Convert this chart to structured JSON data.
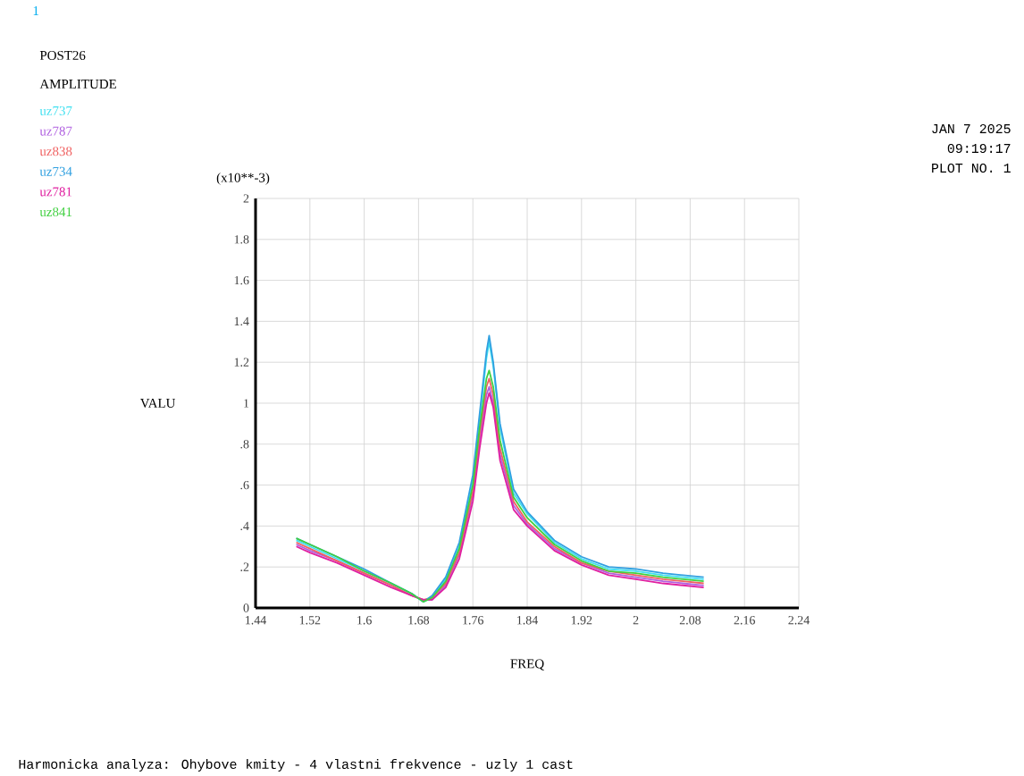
{
  "chart_data": {
    "type": "line",
    "annotations": [
      "1",
      "POST26",
      "AMPLITUDE",
      "(x10**-3)",
      "JAN  7 2025",
      "09:19:17",
      "PLOT NO.    1",
      "Harmonicka analyza: Ohybove kmity - 4 vlastni frekvence - uzly 1 cast"
    ],
    "xlabel": "FREQ",
    "ylabel": "VALU",
    "x": [
      1.5,
      1.52,
      1.56,
      1.6,
      1.64,
      1.67,
      1.687,
      1.7,
      1.72,
      1.74,
      1.76,
      1.77,
      1.78,
      1.784,
      1.79,
      1.8,
      1.82,
      1.84,
      1.88,
      1.92,
      1.96,
      2.0,
      2.04,
      2.1
    ],
    "series": [
      {
        "name": "uz737",
        "color": "#40e0f0",
        "values": [
          0.33,
          0.3,
          0.24,
          0.18,
          0.12,
          0.07,
          0.03,
          0.05,
          0.14,
          0.3,
          0.62,
          0.92,
          1.22,
          1.3,
          1.18,
          0.88,
          0.56,
          0.46,
          0.32,
          0.24,
          0.19,
          0.18,
          0.16,
          0.14
        ]
      },
      {
        "name": "uz787",
        "color": "#b060e0",
        "values": [
          0.31,
          0.28,
          0.23,
          0.17,
          0.11,
          0.06,
          0.04,
          0.04,
          0.11,
          0.26,
          0.55,
          0.82,
          1.04,
          1.08,
          1.0,
          0.75,
          0.5,
          0.41,
          0.29,
          0.22,
          0.17,
          0.15,
          0.13,
          0.11
        ]
      },
      {
        "name": "uz838",
        "color": "#f06060",
        "values": [
          0.32,
          0.29,
          0.23,
          0.17,
          0.11,
          0.06,
          0.04,
          0.05,
          0.12,
          0.27,
          0.57,
          0.85,
          1.08,
          1.12,
          1.04,
          0.78,
          0.52,
          0.42,
          0.3,
          0.22,
          0.18,
          0.16,
          0.14,
          0.12
        ]
      },
      {
        "name": "uz734",
        "color": "#30a0e0",
        "values": [
          0.34,
          0.31,
          0.25,
          0.19,
          0.12,
          0.07,
          0.03,
          0.06,
          0.15,
          0.32,
          0.65,
          0.95,
          1.25,
          1.33,
          1.2,
          0.9,
          0.58,
          0.47,
          0.33,
          0.25,
          0.2,
          0.19,
          0.17,
          0.15
        ]
      },
      {
        "name": "uz781",
        "color": "#e020a0",
        "values": [
          0.3,
          0.27,
          0.22,
          0.16,
          0.1,
          0.06,
          0.04,
          0.04,
          0.1,
          0.24,
          0.52,
          0.78,
          1.0,
          1.05,
          0.98,
          0.72,
          0.48,
          0.4,
          0.28,
          0.21,
          0.16,
          0.14,
          0.12,
          0.1
        ]
      },
      {
        "name": "uz841",
        "color": "#40d040",
        "values": [
          0.34,
          0.31,
          0.25,
          0.18,
          0.12,
          0.07,
          0.03,
          0.05,
          0.13,
          0.29,
          0.6,
          0.88,
          1.12,
          1.16,
          1.08,
          0.82,
          0.54,
          0.44,
          0.31,
          0.23,
          0.18,
          0.17,
          0.15,
          0.13
        ]
      }
    ],
    "xlim": [
      1.44,
      2.24
    ],
    "ylim": [
      0,
      2
    ],
    "xticks": [
      1.44,
      1.52,
      1.6,
      1.68,
      1.76,
      1.84,
      1.92,
      2,
      2.08,
      2.16,
      2.24
    ],
    "yticks": [
      0,
      {
        "value": 0.2,
        "label": ".2"
      },
      {
        "value": 0.4,
        "label": ".4"
      },
      {
        "value": 0.6,
        "label": ".6"
      },
      {
        "value": 0.8,
        "label": ".8"
      },
      1,
      1.2,
      1.4,
      1.6,
      1.8,
      2
    ],
    "grid": true,
    "legend": "top left",
    "marker": "none",
    "line_style": "solid"
  }
}
